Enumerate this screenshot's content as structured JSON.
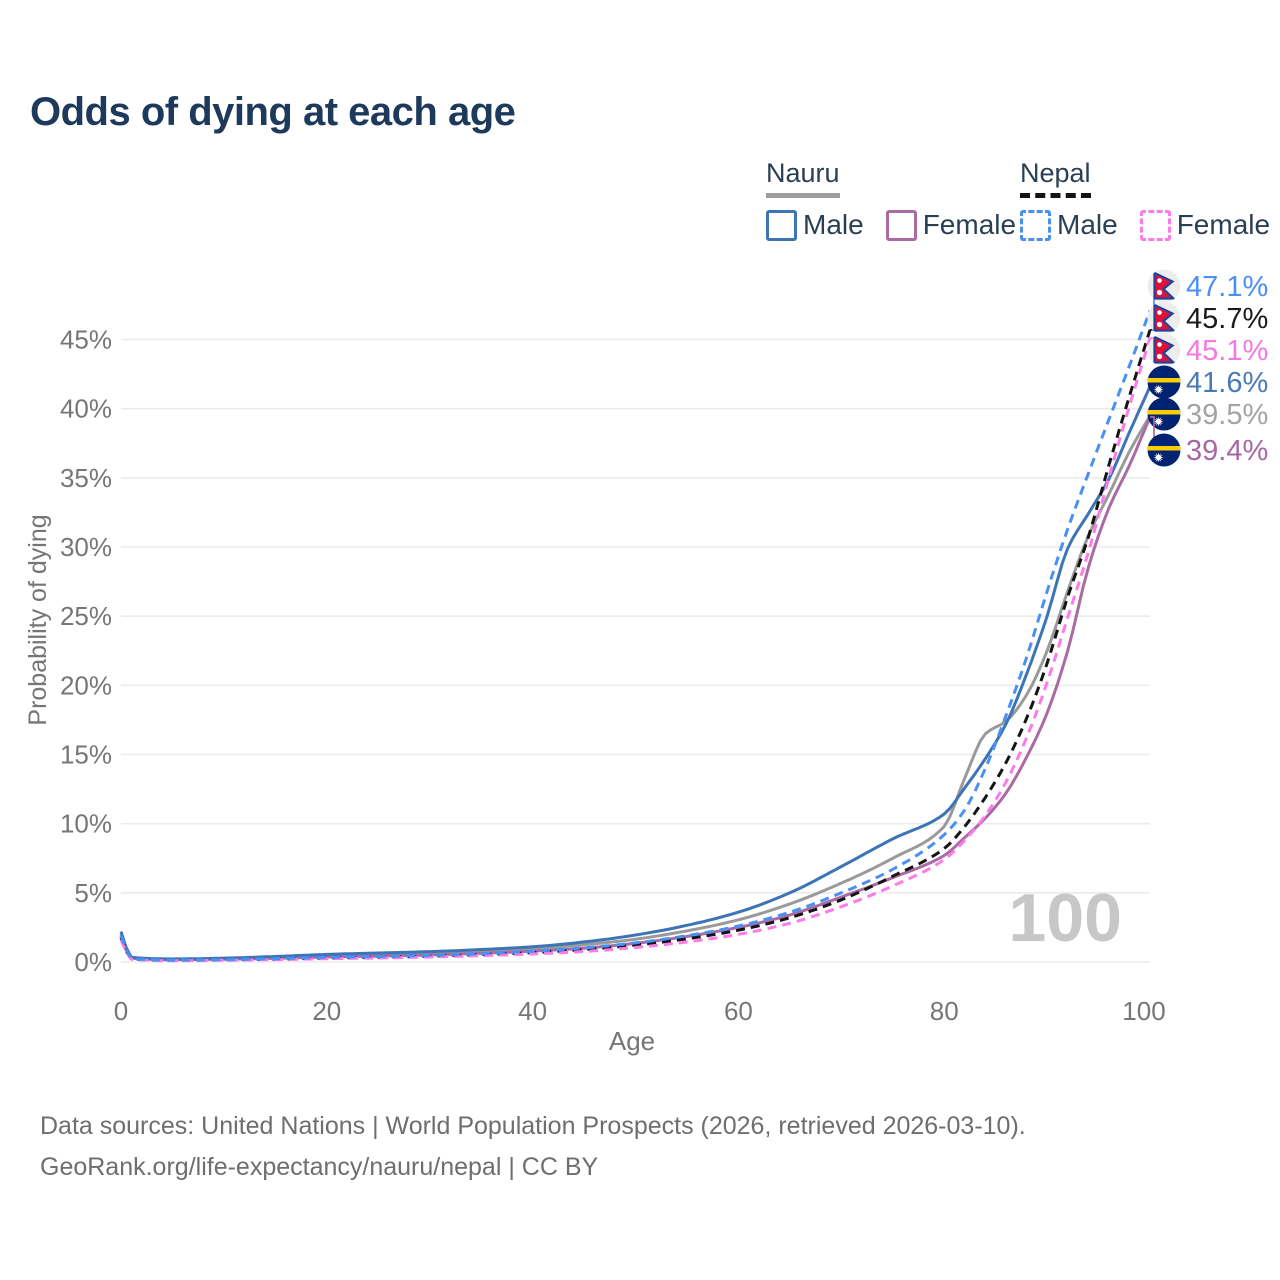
{
  "title": "Odds of dying at each age",
  "legend": {
    "groups": [
      {
        "name": "Nauru",
        "line_style": "solid",
        "underline_color": "#9e9e9e",
        "items": [
          {
            "label": "Male",
            "color": "#3d74b5"
          },
          {
            "label": "Female",
            "color": "#aa6ba5"
          }
        ]
      },
      {
        "name": "Nepal",
        "line_style": "dashed",
        "underline_color": "#141414",
        "items": [
          {
            "label": "Male",
            "color": "#4a90f4"
          },
          {
            "label": "Female",
            "color": "#fb7ce8"
          }
        ]
      }
    ]
  },
  "chart_data": {
    "type": "line",
    "title": "Odds of dying at each age",
    "xlabel": "Age",
    "ylabel": "Probability of dying",
    "xlim": [
      0,
      100
    ],
    "ylim": [
      0,
      47.5
    ],
    "x_ticks": [
      0,
      20,
      40,
      60,
      80,
      100
    ],
    "y_ticks": [
      0,
      5,
      10,
      15,
      20,
      25,
      30,
      35,
      40,
      45
    ],
    "y_tick_suffix": "%",
    "grid": true,
    "legend_position": "top-right",
    "watermark": "100",
    "x": [
      0,
      1,
      5,
      10,
      15,
      20,
      25,
      30,
      35,
      40,
      45,
      50,
      55,
      60,
      65,
      70,
      75,
      80,
      82,
      84,
      86,
      88,
      90,
      92,
      94,
      96,
      98,
      100
    ],
    "series": [
      {
        "id": "nauru-total",
        "name": "Nauru (both sexes)",
        "country": "Nauru",
        "sex": "all",
        "color": "#9a9a9a",
        "dashed": false,
        "values": [
          2.0,
          0.3,
          0.2,
          0.25,
          0.35,
          0.48,
          0.56,
          0.66,
          0.8,
          0.97,
          1.25,
          1.65,
          2.25,
          3.05,
          4.2,
          5.7,
          7.5,
          9.8,
          13.3,
          16.5,
          17.4,
          19.3,
          22.5,
          26.8,
          30.8,
          33.8,
          36.9,
          39.5
        ],
        "end_label": "39.5%",
        "label_color": "#a3a3a3",
        "flag": "nauru"
      },
      {
        "id": "nauru-female",
        "name": "Nauru Female",
        "country": "Nauru",
        "sex": "female",
        "color": "#aa6ba5",
        "dashed": false,
        "values": [
          1.8,
          0.28,
          0.17,
          0.2,
          0.27,
          0.36,
          0.43,
          0.51,
          0.63,
          0.79,
          1.0,
          1.35,
          1.85,
          2.5,
          3.4,
          4.7,
          6.1,
          7.7,
          9.0,
          10.4,
          12.2,
          14.8,
          18.0,
          22.5,
          28.5,
          32.8,
          35.9,
          39.4
        ],
        "end_label": "39.4%",
        "label_color": "#a867a3",
        "flag": "nauru"
      },
      {
        "id": "nauru-male",
        "name": "Nauru Male",
        "country": "Nauru",
        "sex": "male",
        "color": "#3d74b5",
        "dashed": false,
        "values": [
          2.2,
          0.35,
          0.22,
          0.28,
          0.4,
          0.55,
          0.65,
          0.75,
          0.9,
          1.1,
          1.45,
          1.95,
          2.65,
          3.6,
          5.0,
          6.9,
          8.9,
          10.7,
          12.6,
          14.7,
          17.2,
          20.8,
          25.0,
          29.9,
          32.4,
          34.9,
          38.3,
          41.6
        ],
        "end_label": "41.6%",
        "label_color": "#4a7ab5",
        "flag": "nauru"
      },
      {
        "id": "nepal-total",
        "name": "Nepal (both sexes)",
        "country": "Nepal",
        "sex": "all",
        "color": "#141414",
        "dashed": true,
        "values": [
          1.75,
          0.22,
          0.12,
          0.15,
          0.2,
          0.28,
          0.34,
          0.42,
          0.53,
          0.68,
          0.9,
          1.22,
          1.68,
          2.3,
          3.2,
          4.5,
          6.2,
          8.2,
          9.8,
          11.9,
          14.4,
          17.6,
          21.6,
          26.4,
          30.7,
          35.9,
          40.9,
          45.7
        ],
        "end_label": "45.7%",
        "label_color": "#1a1a1a",
        "flag": "nepal"
      },
      {
        "id": "nepal-female",
        "name": "Nepal Female",
        "country": "Nepal",
        "sex": "female",
        "color": "#fb7ce8",
        "dashed": true,
        "values": [
          1.6,
          0.2,
          0.1,
          0.13,
          0.17,
          0.24,
          0.29,
          0.36,
          0.46,
          0.58,
          0.76,
          1.05,
          1.45,
          2.0,
          2.8,
          4.0,
          5.5,
          7.4,
          8.8,
          10.6,
          13.0,
          16.2,
          20.2,
          24.9,
          29.6,
          35.0,
          40.2,
          45.1
        ],
        "end_label": "45.1%",
        "label_color": "#f578e2",
        "flag": "nepal"
      },
      {
        "id": "nepal-male",
        "name": "Nepal Male",
        "country": "Nepal",
        "sex": "male",
        "color": "#4a90f4",
        "dashed": true,
        "values": [
          1.9,
          0.25,
          0.14,
          0.17,
          0.24,
          0.33,
          0.4,
          0.48,
          0.6,
          0.78,
          1.02,
          1.38,
          1.9,
          2.6,
          3.6,
          5.0,
          6.7,
          9.2,
          11.0,
          14.0,
          17.8,
          22.0,
          26.8,
          31.3,
          35.3,
          39.2,
          43.1,
          47.1
        ],
        "end_label": "47.1%",
        "label_color": "#4a90f4",
        "flag": "nepal"
      }
    ]
  },
  "footer": {
    "line1": "Data sources: United Nations | World Population Prospects (2026, retrieved 2026-03-10).",
    "line2": "GeoRank.org/life-expectancy/nauru/nepal | CC BY"
  }
}
